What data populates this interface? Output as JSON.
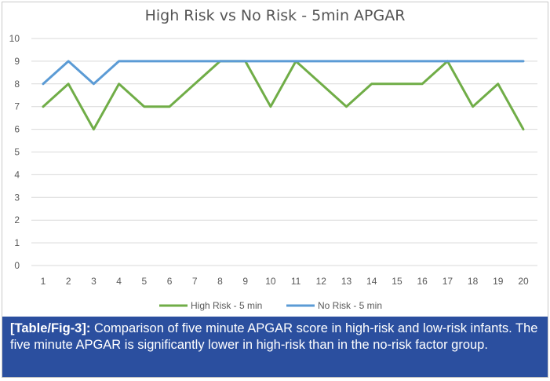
{
  "chart_data": {
    "type": "line",
    "title": "High Risk vs No Risk - 5min APGAR",
    "xlabel": "",
    "ylabel": "",
    "x": [
      1,
      2,
      3,
      4,
      5,
      6,
      7,
      8,
      9,
      10,
      11,
      12,
      13,
      14,
      15,
      16,
      17,
      18,
      19,
      20
    ],
    "ylim": [
      0,
      10
    ],
    "yticks": [
      0,
      1,
      2,
      3,
      4,
      5,
      6,
      7,
      8,
      9,
      10
    ],
    "grid": true,
    "legend_position": "bottom",
    "series": [
      {
        "name": "High Risk - 5 min",
        "color": "#70ad47",
        "values": [
          7,
          8,
          6,
          8,
          7,
          7,
          8,
          9,
          9,
          7,
          9,
          8,
          7,
          8,
          8,
          8,
          9,
          7,
          8,
          6
        ]
      },
      {
        "name": "No Risk - 5 min",
        "color": "#5b9bd5",
        "values": [
          8,
          9,
          8,
          9,
          9,
          9,
          9,
          9,
          9,
          9,
          9,
          9,
          9,
          9,
          9,
          9,
          9,
          9,
          9,
          9
        ]
      }
    ]
  },
  "caption": {
    "lead": "[Table/Fig-3]:",
    "text": " Comparison of five minute APGAR score in high-risk and low-risk infants. The five minute APGAR is significantly lower in high-risk than in the no-risk factor group."
  },
  "colors": {
    "caption_bg": "#2b4f9f",
    "gridline": "#d9d9d9",
    "axis_text": "#595959"
  }
}
